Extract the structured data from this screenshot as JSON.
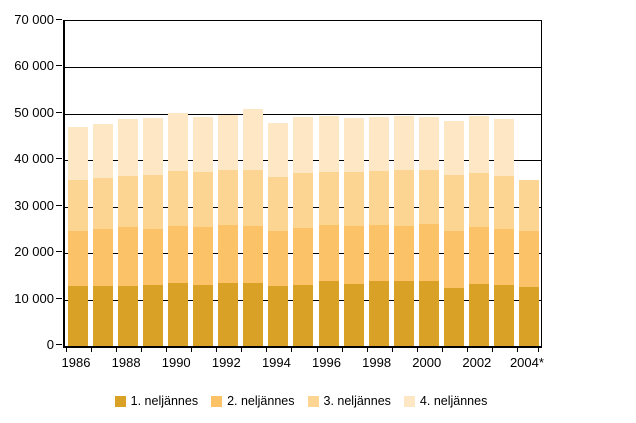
{
  "page": {
    "background": "#ffffff"
  },
  "chart_data": {
    "type": "bar",
    "stacked": true,
    "title": "",
    "xlabel": "",
    "ylabel": "",
    "categories": [
      "1986",
      "1987",
      "1988",
      "1989",
      "1990",
      "1991",
      "1992",
      "1993",
      "1994",
      "1995",
      "1996",
      "1997",
      "1998",
      "1999",
      "2000",
      "2001",
      "2002",
      "2003",
      "2004*"
    ],
    "series": [
      {
        "name": "1. neljännes",
        "color": "#D9A226",
        "values": [
          12900,
          12900,
          12900,
          13200,
          13600,
          13200,
          13600,
          13600,
          12900,
          13200,
          13900,
          13400,
          14000,
          14100,
          14100,
          12500,
          13400,
          13200,
          12700
        ]
      },
      {
        "name": "2. neljännes",
        "color": "#FBC267",
        "values": [
          11800,
          12200,
          12700,
          12000,
          12200,
          12400,
          12400,
          12200,
          11800,
          12300,
          12100,
          12400,
          12000,
          11800,
          12100,
          12200,
          12200,
          11900,
          12000
        ]
      },
      {
        "name": "3. neljännes",
        "color": "#FCD592",
        "values": [
          11000,
          11000,
          11000,
          11600,
          11800,
          11900,
          12000,
          12200,
          11600,
          11700,
          11500,
          11700,
          11600,
          12000,
          11800,
          12100,
          11700,
          11500,
          11100
        ]
      },
      {
        "name": "4. neljännes",
        "color": "#FEE7C4",
        "values": [
          11400,
          11800,
          12400,
          12300,
          12500,
          11800,
          11800,
          13000,
          11700,
          12100,
          12000,
          11700,
          11700,
          11600,
          11400,
          11600,
          12200,
          12400,
          null
        ]
      }
    ],
    "ylim": [
      0,
      70000
    ],
    "y_tick_labels": [
      "0",
      "10 000",
      "20 000",
      "30 000",
      "40 000",
      "50 000",
      "60 000",
      "70 000"
    ],
    "x_tick_labels_shown": [
      "1986",
      "1988",
      "1990",
      "1992",
      "1994",
      "1996",
      "1998",
      "2000",
      "2002",
      "2004*"
    ],
    "grid": true,
    "gridline_color": "#000000",
    "legend_position": "bottom"
  }
}
